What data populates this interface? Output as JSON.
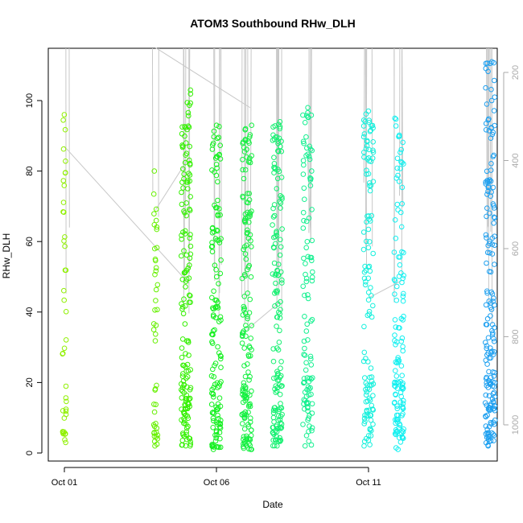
{
  "chart_data": {
    "type": "scatter",
    "title": "ATOM3 Southbound RHw_DLH",
    "xlabel": "Date",
    "ylabel": "RHw_DLH",
    "x_ticks": [
      "Oct 01",
      "Oct 06",
      "Oct 11"
    ],
    "y_ticks": [
      "0",
      "20",
      "40",
      "60",
      "80",
      "100"
    ],
    "y2_ticks": [
      "200",
      "400",
      "600",
      "800",
      "1000"
    ],
    "ylim": [
      0,
      115
    ],
    "y2lim": [
      1050,
      150
    ],
    "y2_axis_color": "#aaaaaa",
    "profile_line_color": "#c8c8c8",
    "grid": false,
    "series": [
      {
        "x": "Oct 01",
        "color": "#8ff000",
        "n": 40,
        "min": 3,
        "max": 96
      },
      {
        "x": "Oct 04",
        "color": "#66f000",
        "n": 45,
        "min": 2,
        "max": 80
      },
      {
        "x": "Oct 05",
        "color": "#33f000",
        "n": 160,
        "min": 2,
        "max": 103
      },
      {
        "x": "Oct 06",
        "color": "#14f020",
        "n": 140,
        "min": 1,
        "max": 93
      },
      {
        "x": "Oct 07",
        "color": "#14f040",
        "n": 160,
        "min": 1,
        "max": 93
      },
      {
        "x": "Oct 08",
        "color": "#14f070",
        "n": 150,
        "min": 2,
        "max": 94
      },
      {
        "x": "Oct 09",
        "color": "#14f090",
        "n": 110,
        "min": 2,
        "max": 98
      },
      {
        "x": "Oct 11",
        "color": "#14f0dc",
        "n": 120,
        "min": 2,
        "max": 97
      },
      {
        "x": "Oct 12",
        "color": "#14f0f0",
        "n": 130,
        "min": 1,
        "max": 95
      },
      {
        "x": "Oct 15",
        "color": "#1ea0f0",
        "n": 180,
        "min": 2,
        "max": 111
      }
    ]
  }
}
